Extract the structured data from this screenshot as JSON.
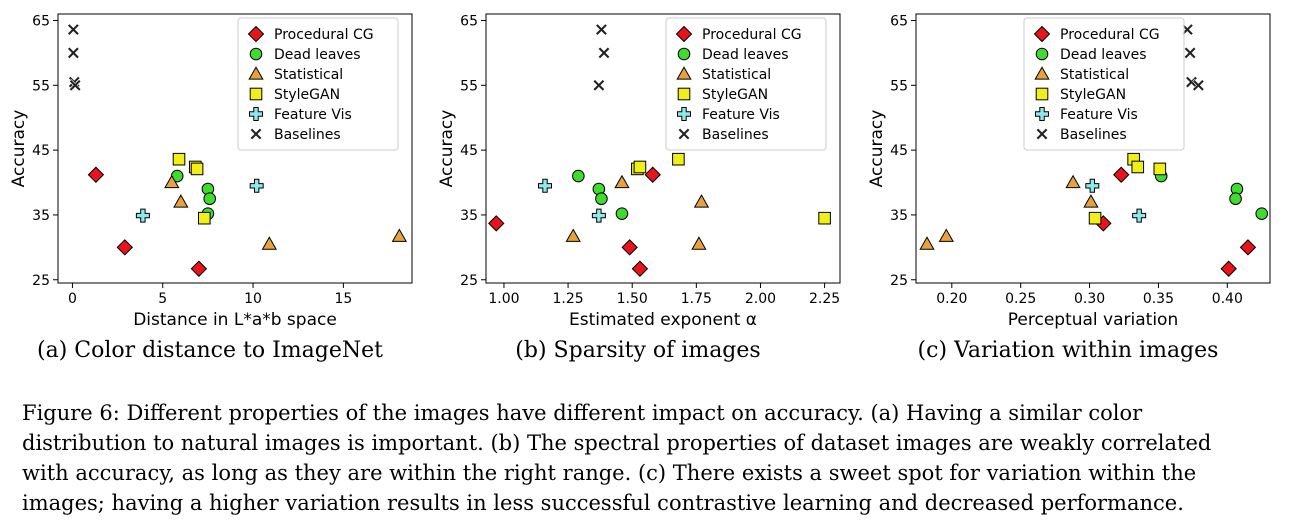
{
  "legend_entries": [
    {
      "key": "procedural",
      "label": "Procedural CG",
      "marker": "diamond",
      "color": "#e8141b"
    },
    {
      "key": "deadleaves",
      "label": "Dead leaves",
      "marker": "circle",
      "color": "#3fdc2f"
    },
    {
      "key": "statistical",
      "label": "Statistical",
      "marker": "triangle",
      "color": "#e8a23d"
    },
    {
      "key": "stylegan",
      "label": "StyleGAN",
      "marker": "square",
      "color": "#f0f016"
    },
    {
      "key": "featurevis",
      "label": "Feature Vis",
      "marker": "plus",
      "color": "#8fe8ea"
    },
    {
      "key": "baselines",
      "label": "Baselines",
      "marker": "x",
      "color": "#222222"
    }
  ],
  "chart_data": [
    {
      "type": "scatter",
      "subcaption": "(a) Color distance to ImageNet",
      "xlabel": "Distance in L*a*b space",
      "ylabel": "Accuracy",
      "xlim": [
        -0.8,
        18.8
      ],
      "ylim": [
        24.5,
        66
      ],
      "xticks": [
        0,
        5,
        10,
        15
      ],
      "xtick_labels": [
        "0",
        "5",
        "10",
        "15"
      ],
      "yticks": [
        25,
        35,
        45,
        55,
        65
      ],
      "ytick_labels": [
        "25",
        "35",
        "45",
        "55",
        "65"
      ],
      "grid": false,
      "legend_position": "top-right",
      "series": [
        {
          "key": "procedural",
          "x": [
            1.3,
            2.9,
            7.0
          ],
          "y": [
            41.2,
            30.0,
            26.7
          ]
        },
        {
          "key": "deadleaves",
          "x": [
            5.8,
            7.5,
            7.6,
            7.5
          ],
          "y": [
            41.0,
            39.0,
            37.5,
            35.2
          ]
        },
        {
          "key": "statistical",
          "x": [
            5.5,
            6.0,
            10.9,
            18.1
          ],
          "y": [
            40.0,
            37.0,
            30.5,
            31.7
          ]
        },
        {
          "key": "stylegan",
          "x": [
            5.9,
            6.8,
            6.9,
            7.3
          ],
          "y": [
            43.6,
            42.4,
            42.1,
            34.5
          ]
        },
        {
          "key": "featurevis",
          "x": [
            3.9,
            10.2
          ],
          "y": [
            34.9,
            39.5
          ]
        },
        {
          "key": "baselines",
          "x": [
            0.05,
            0.05,
            0.1,
            0.15
          ],
          "y": [
            63.6,
            60.0,
            55.5,
            55.0
          ]
        }
      ]
    },
    {
      "type": "scatter",
      "subcaption": "(b) Sparsity of images",
      "xlabel": "Estimated exponent α",
      "ylabel": "Accuracy",
      "xlim": [
        0.93,
        2.31
      ],
      "ylim": [
        24.5,
        66
      ],
      "xticks": [
        1.0,
        1.25,
        1.5,
        1.75,
        2.0,
        2.25
      ],
      "xtick_labels": [
        "1.00",
        "1.25",
        "1.50",
        "1.75",
        "2.00",
        "2.25"
      ],
      "yticks": [
        25,
        35,
        45,
        55,
        65
      ],
      "ytick_labels": [
        "25",
        "35",
        "45",
        "55",
        "65"
      ],
      "grid": false,
      "legend_position": "top-right",
      "series": [
        {
          "key": "procedural",
          "x": [
            0.97,
            1.49,
            1.53,
            1.58
          ],
          "y": [
            33.7,
            30.0,
            26.7,
            41.2
          ]
        },
        {
          "key": "deadleaves",
          "x": [
            1.29,
            1.37,
            1.38,
            1.46
          ],
          "y": [
            41.0,
            39.0,
            37.5,
            35.2
          ]
        },
        {
          "key": "statistical",
          "x": [
            1.27,
            1.46,
            1.76,
            1.77
          ],
          "y": [
            31.7,
            40.0,
            30.5,
            37.0
          ]
        },
        {
          "key": "stylegan",
          "x": [
            1.52,
            1.53,
            1.68,
            2.25
          ],
          "y": [
            42.1,
            42.4,
            43.6,
            34.5
          ]
        },
        {
          "key": "featurevis",
          "x": [
            1.16,
            1.37
          ],
          "y": [
            39.5,
            34.9
          ]
        },
        {
          "key": "baselines",
          "x": [
            1.38,
            1.39,
            1.37
          ],
          "y": [
            63.6,
            60.0,
            55.0
          ]
        }
      ]
    },
    {
      "type": "scatter",
      "subcaption": "(c) Variation within images",
      "xlabel": "Perceptual variation",
      "ylabel": "Accuracy",
      "xlim": [
        0.174,
        0.431
      ],
      "ylim": [
        24.5,
        66
      ],
      "xticks": [
        0.2,
        0.25,
        0.3,
        0.35,
        0.4
      ],
      "xtick_labels": [
        "0.20",
        "0.25",
        "0.30",
        "0.35",
        "0.40"
      ],
      "yticks": [
        25,
        35,
        45,
        55,
        65
      ],
      "ytick_labels": [
        "25",
        "35",
        "45",
        "55",
        "65"
      ],
      "grid": false,
      "legend_position": "top-left",
      "series": [
        {
          "key": "procedural",
          "x": [
            0.323,
            0.31,
            0.415,
            0.401
          ],
          "y": [
            41.2,
            33.7,
            30.0,
            26.7
          ]
        },
        {
          "key": "deadleaves",
          "x": [
            0.352,
            0.407,
            0.406,
            0.425
          ],
          "y": [
            41.0,
            39.0,
            37.5,
            35.2
          ]
        },
        {
          "key": "statistical",
          "x": [
            0.288,
            0.301,
            0.182,
            0.196
          ],
          "y": [
            40.0,
            37.0,
            30.5,
            31.7
          ]
        },
        {
          "key": "stylegan",
          "x": [
            0.332,
            0.335,
            0.351,
            0.304
          ],
          "y": [
            43.6,
            42.4,
            42.1,
            34.5
          ]
        },
        {
          "key": "featurevis",
          "x": [
            0.302,
            0.336
          ],
          "y": [
            39.5,
            34.9
          ]
        },
        {
          "key": "baselines",
          "x": [
            0.371,
            0.373,
            0.374,
            0.379
          ],
          "y": [
            63.6,
            60.0,
            55.5,
            55.0
          ]
        }
      ]
    }
  ],
  "caption_lines": [
    "Figure 6: Different properties of the images have different impact on accuracy. (a) Having a similar color",
    "distribution to natural images is important. (b) The spectral properties of dataset images are weakly correlated",
    "with accuracy, as long as they are within the right range. (c) There exists a sweet spot for variation within the",
    "images; having a higher variation results in less successful contrastive learning and decreased performance."
  ]
}
